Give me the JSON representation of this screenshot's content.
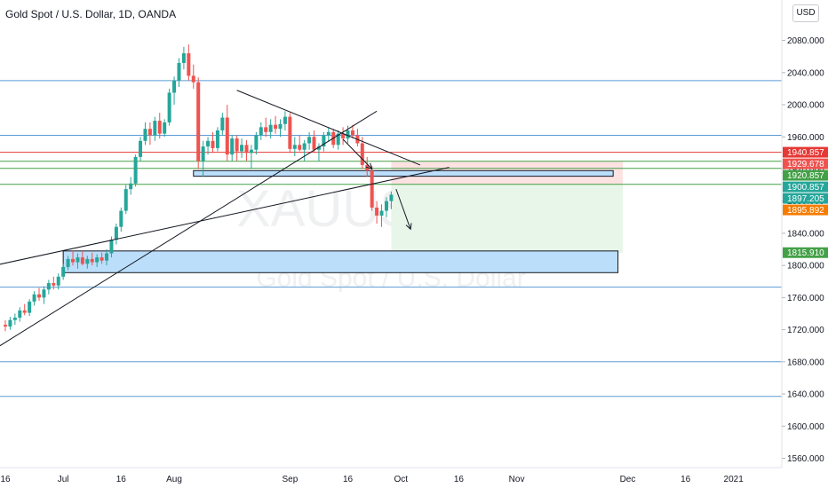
{
  "header": {
    "title": "Gold Spot / U.S. Dollar, 1D, OANDA",
    "currency_button": "USD"
  },
  "watermark": {
    "symbol": "XAUUSD, 1D",
    "description": "Gold Spot / U.S. Dollar"
  },
  "colors": {
    "up": "#26a69a",
    "down": "#ef5350",
    "background": "#ffffff",
    "blue_line": "#5b9bd5",
    "red_line": "#e53935",
    "green_line": "#43a047",
    "zone_fill": "#bbdefb",
    "target_fill": "#e8f5e9",
    "stop_fill": "#fde2e2"
  },
  "chart_data": {
    "type": "candlestick",
    "title": "Gold Spot / U.S. Dollar, 1D, OANDA",
    "ylim": [
      1555,
      2095
    ],
    "y_ticks": [
      "2080.000",
      "2040.000",
      "2000.000",
      "1960.000",
      "1920.000",
      "1880.000",
      "1840.000",
      "1800.000",
      "1760.000",
      "1720.000",
      "1680.000",
      "1640.000",
      "1600.000",
      "1560.000"
    ],
    "x_ticks": [
      {
        "label": "16",
        "i": 0
      },
      {
        "label": "Jul",
        "i": 12
      },
      {
        "label": "16",
        "i": 24
      },
      {
        "label": "Aug",
        "i": 35
      },
      {
        "label": "Sep",
        "i": 59
      },
      {
        "label": "16",
        "i": 71
      },
      {
        "label": "Oct",
        "i": 82
      },
      {
        "label": "16",
        "i": 94
      },
      {
        "label": "Nov",
        "i": 106
      },
      {
        "label": "Dec",
        "i": 129
      },
      {
        "label": "16",
        "i": 141
      },
      {
        "label": "2021",
        "i": 153
      }
    ],
    "candles": [
      [
        1726,
        1732,
        1718,
        1724
      ],
      [
        1724,
        1736,
        1720,
        1732
      ],
      [
        1732,
        1740,
        1726,
        1735
      ],
      [
        1735,
        1748,
        1730,
        1744
      ],
      [
        1744,
        1752,
        1738,
        1741
      ],
      [
        1741,
        1758,
        1737,
        1755
      ],
      [
        1755,
        1768,
        1750,
        1764
      ],
      [
        1764,
        1772,
        1756,
        1760
      ],
      [
        1760,
        1774,
        1752,
        1770
      ],
      [
        1770,
        1782,
        1764,
        1778
      ],
      [
        1778,
        1786,
        1770,
        1775
      ],
      [
        1775,
        1790,
        1770,
        1786
      ],
      [
        1786,
        1802,
        1782,
        1798
      ],
      [
        1798,
        1812,
        1794,
        1808
      ],
      [
        1808,
        1818,
        1800,
        1804
      ],
      [
        1804,
        1815,
        1796,
        1810
      ],
      [
        1810,
        1818,
        1800,
        1802
      ],
      [
        1802,
        1812,
        1796,
        1808
      ],
      [
        1808,
        1816,
        1800,
        1804
      ],
      [
        1804,
        1814,
        1798,
        1810
      ],
      [
        1810,
        1816,
        1802,
        1806
      ],
      [
        1806,
        1820,
        1800,
        1815
      ],
      [
        1815,
        1836,
        1810,
        1832
      ],
      [
        1832,
        1852,
        1826,
        1848
      ],
      [
        1848,
        1872,
        1842,
        1868
      ],
      [
        1868,
        1900,
        1864,
        1895
      ],
      [
        1895,
        1910,
        1888,
        1902
      ],
      [
        1902,
        1938,
        1898,
        1935
      ],
      [
        1935,
        1960,
        1930,
        1955
      ],
      [
        1955,
        1978,
        1950,
        1970
      ],
      [
        1970,
        1978,
        1950,
        1962
      ],
      [
        1962,
        1985,
        1955,
        1980
      ],
      [
        1980,
        1990,
        1958,
        1964
      ],
      [
        1964,
        1982,
        1960,
        1978
      ],
      [
        1978,
        2020,
        1974,
        2015
      ],
      [
        2015,
        2035,
        2000,
        2030
      ],
      [
        2030,
        2058,
        2022,
        2052
      ],
      [
        2052,
        2072,
        2044,
        2064
      ],
      [
        2064,
        2075,
        2030,
        2036
      ],
      [
        2036,
        2050,
        2020,
        2028
      ],
      [
        2028,
        2034,
        1920,
        1930
      ],
      [
        1930,
        1955,
        1910,
        1948
      ],
      [
        1948,
        1960,
        1938,
        1955
      ],
      [
        1955,
        1966,
        1940,
        1946
      ],
      [
        1946,
        1972,
        1942,
        1968
      ],
      [
        1968,
        1990,
        1962,
        1984
      ],
      [
        1984,
        2000,
        1930,
        1938
      ],
      [
        1938,
        1962,
        1930,
        1958
      ],
      [
        1958,
        1962,
        1930,
        1942
      ],
      [
        1942,
        1958,
        1934,
        1950
      ],
      [
        1950,
        1956,
        1930,
        1940
      ],
      [
        1940,
        1950,
        1920,
        1944
      ],
      [
        1944,
        1966,
        1938,
        1962
      ],
      [
        1962,
        1978,
        1956,
        1972
      ],
      [
        1972,
        1984,
        1960,
        1966
      ],
      [
        1966,
        1982,
        1958,
        1975
      ],
      [
        1975,
        1986,
        1964,
        1970
      ],
      [
        1970,
        1982,
        1960,
        1976
      ],
      [
        1976,
        1992,
        1968,
        1985
      ],
      [
        1985,
        1990,
        1940,
        1945
      ],
      [
        1945,
        1960,
        1936,
        1950
      ],
      [
        1950,
        1962,
        1942,
        1944
      ],
      [
        1944,
        1956,
        1930,
        1952
      ],
      [
        1952,
        1966,
        1944,
        1960
      ],
      [
        1960,
        1968,
        1940,
        1944
      ],
      [
        1944,
        1952,
        1930,
        1948
      ],
      [
        1948,
        1966,
        1942,
        1962
      ],
      [
        1962,
        1972,
        1954,
        1966
      ],
      [
        1966,
        1970,
        1946,
        1950
      ],
      [
        1950,
        1968,
        1944,
        1964
      ],
      [
        1964,
        1972,
        1950,
        1958
      ],
      [
        1958,
        1974,
        1952,
        1968
      ],
      [
        1968,
        1975,
        1958,
        1962
      ],
      [
        1962,
        1970,
        1948,
        1952
      ],
      [
        1952,
        1960,
        1920,
        1925
      ],
      [
        1925,
        1935,
        1910,
        1918
      ],
      [
        1918,
        1924,
        1868,
        1872
      ],
      [
        1872,
        1880,
        1852,
        1862
      ],
      [
        1862,
        1876,
        1848,
        1868
      ],
      [
        1868,
        1885,
        1860,
        1880
      ],
      [
        1880,
        1892,
        1870,
        1888
      ]
    ],
    "horizontal_levels": [
      {
        "price": 2030,
        "color": "blue"
      },
      {
        "price": 1962,
        "color": "blue"
      },
      {
        "price": 1940.857,
        "color": "red"
      },
      {
        "price": 1929.678,
        "color": "green"
      },
      {
        "price": 1920.857,
        "color": "green"
      },
      {
        "price": 1900.857,
        "color": "green"
      },
      {
        "price": 1773,
        "color": "blue"
      },
      {
        "price": 1680,
        "color": "blue"
      },
      {
        "price": 1637,
        "color": "blue"
      }
    ],
    "price_labels": [
      {
        "text": "1940.857",
        "price": 1940.857,
        "color": "#e53935"
      },
      {
        "text": "1929.678",
        "price": 1929.678,
        "color": "#ef5350"
      },
      {
        "text": "1920.857",
        "price": 1920.857,
        "color": "#43a047"
      },
      {
        "text": "1900.857",
        "price": 1900.857,
        "color": "#26a69a"
      },
      {
        "text": "1897.205",
        "price": 1897.205,
        "color": "#26a69a"
      },
      {
        "text": "1895.892",
        "price": 1895.892,
        "color": "#f57c00"
      },
      {
        "text": "1815.910",
        "price": 1815.91,
        "color": "#43a047"
      }
    ],
    "zones": [
      {
        "name": "supply zone",
        "i0": 39,
        "i1": 126,
        "p_top": 1918,
        "p_bottom": 1911
      },
      {
        "name": "demand zone",
        "i0": 12,
        "i1": 127,
        "p_top": 1818,
        "p_bottom": 1791
      }
    ],
    "position": {
      "i0": 80,
      "i1": 128,
      "entry": 1900.857,
      "stop": 1929.678,
      "target": 1815.91
    },
    "trendlines": [
      {
        "i0": 48,
        "p0": 2018,
        "i1": 86,
        "p1": 1925
      },
      {
        "i0": -3,
        "p0": 1693,
        "i1": 77,
        "p1": 1992
      },
      {
        "i0": -3,
        "p0": 1799,
        "i1": 92,
        "p1": 1922
      },
      {
        "i0": 70,
        "p0": 1957,
        "i1": 76,
        "p1": 1920
      },
      {
        "i0": 81,
        "p0": 1895,
        "i1": 84,
        "p1": 1845
      }
    ]
  }
}
